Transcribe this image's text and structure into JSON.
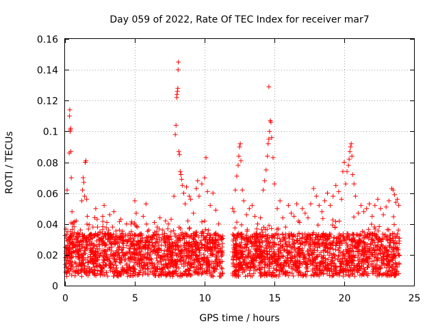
{
  "chart_data": {
    "type": "scatter",
    "title": "Day 059 of 2022, Rate Of TEC Index for receiver mar7",
    "xlabel": "GPS time / hours",
    "ylabel": "ROTI / TECUs",
    "xlim": [
      0,
      25
    ],
    "ylim": [
      0,
      0.16
    ],
    "xticks": [
      0,
      5,
      10,
      15,
      20,
      25
    ],
    "xtick_labels": [
      "0",
      "5",
      "10",
      "15",
      "20",
      "25"
    ],
    "yticks": [
      0,
      0.02,
      0.04,
      0.06,
      0.08,
      0.1,
      0.12,
      0.14,
      0.16
    ],
    "ytick_labels": [
      "0",
      "0.02",
      "0.04",
      "0.06",
      "0.08",
      "0.1",
      "0.12",
      "0.14",
      "0.16"
    ],
    "grid": true,
    "marker": "+",
    "color": "#ff0000",
    "series": [
      {
        "name": "ROTI",
        "points": [
          [
            0.05,
            0.018
          ],
          [
            0.1,
            0.025
          ],
          [
            0.15,
            0.062
          ],
          [
            0.2,
            0.035
          ],
          [
            0.25,
            0.03
          ],
          [
            0.3,
            0.086
          ],
          [
            0.32,
            0.11
          ],
          [
            0.34,
            0.114
          ],
          [
            0.36,
            0.1
          ],
          [
            0.38,
            0.101
          ],
          [
            0.4,
            0.102
          ],
          [
            0.42,
            0.087
          ],
          [
            0.45,
            0.07
          ],
          [
            0.5,
            0.048
          ],
          [
            0.55,
            0.04
          ],
          [
            0.6,
            0.022
          ],
          [
            0.7,
            0.03
          ],
          [
            0.8,
            0.042
          ],
          [
            0.9,
            0.034
          ],
          [
            1.0,
            0.028
          ],
          [
            1.1,
            0.036
          ],
          [
            1.2,
            0.055
          ],
          [
            1.25,
            0.062
          ],
          [
            1.3,
            0.07
          ],
          [
            1.35,
            0.067
          ],
          [
            1.4,
            0.058
          ],
          [
            1.45,
            0.08
          ],
          [
            1.5,
            0.081
          ],
          [
            1.55,
            0.056
          ],
          [
            1.6,
            0.045
          ],
          [
            1.7,
            0.03
          ],
          [
            1.8,
            0.024
          ],
          [
            1.9,
            0.033
          ],
          [
            2.0,
            0.038
          ],
          [
            2.1,
            0.026
          ],
          [
            2.2,
            0.05
          ],
          [
            2.3,
            0.043
          ],
          [
            2.5,
            0.035
          ],
          [
            2.7,
            0.045
          ],
          [
            2.8,
            0.052
          ],
          [
            3.0,
            0.041
          ],
          [
            3.2,
            0.046
          ],
          [
            3.4,
            0.038
          ],
          [
            3.5,
            0.048
          ],
          [
            3.7,
            0.031
          ],
          [
            3.9,
            0.036
          ],
          [
            4.0,
            0.043
          ],
          [
            4.2,
            0.029
          ],
          [
            4.4,
            0.04
          ],
          [
            4.6,
            0.034
          ],
          [
            4.8,
            0.027
          ],
          [
            5.0,
            0.055
          ],
          [
            5.1,
            0.047
          ],
          [
            5.2,
            0.038
          ],
          [
            5.4,
            0.032
          ],
          [
            5.6,
            0.045
          ],
          [
            5.8,
            0.053
          ],
          [
            6.0,
            0.036
          ],
          [
            6.2,
            0.03
          ],
          [
            6.4,
            0.041
          ],
          [
            6.6,
            0.038
          ],
          [
            6.8,
            0.044
          ],
          [
            7.0,
            0.036
          ],
          [
            7.2,
            0.042
          ],
          [
            7.4,
            0.04
          ],
          [
            7.6,
            0.043
          ],
          [
            7.8,
            0.058
          ],
          [
            7.9,
            0.098
          ],
          [
            7.95,
            0.104
          ],
          [
            8.0,
            0.122
          ],
          [
            8.02,
            0.124
          ],
          [
            8.05,
            0.126
          ],
          [
            8.08,
            0.128
          ],
          [
            8.1,
            0.14
          ],
          [
            8.12,
            0.145
          ],
          [
            8.15,
            0.087
          ],
          [
            8.2,
            0.085
          ],
          [
            8.25,
            0.074
          ],
          [
            8.3,
            0.072
          ],
          [
            8.35,
            0.069
          ],
          [
            8.4,
            0.065
          ],
          [
            8.5,
            0.06
          ],
          [
            8.6,
            0.053
          ],
          [
            8.7,
            0.064
          ],
          [
            8.8,
            0.042
          ],
          [
            8.9,
            0.058
          ],
          [
            9.0,
            0.056
          ],
          [
            9.2,
            0.047
          ],
          [
            9.4,
            0.063
          ],
          [
            9.5,
            0.068
          ],
          [
            9.6,
            0.058
          ],
          [
            9.8,
            0.066
          ],
          [
            10.0,
            0.07
          ],
          [
            10.1,
            0.083
          ],
          [
            10.2,
            0.061
          ],
          [
            10.4,
            0.052
          ],
          [
            10.6,
            0.06
          ],
          [
            10.8,
            0.049
          ],
          [
            11.0,
            0.04
          ],
          [
            11.2,
            0.03
          ],
          [
            12.0,
            0.05
          ],
          [
            12.1,
            0.048
          ],
          [
            12.2,
            0.062
          ],
          [
            12.3,
            0.071
          ],
          [
            12.4,
            0.078
          ],
          [
            12.45,
            0.084
          ],
          [
            12.5,
            0.09
          ],
          [
            12.55,
            0.092
          ],
          [
            12.6,
            0.081
          ],
          [
            12.7,
            0.062
          ],
          [
            12.8,
            0.055
          ],
          [
            13.0,
            0.046
          ],
          [
            13.2,
            0.05
          ],
          [
            13.4,
            0.052
          ],
          [
            13.6,
            0.045
          ],
          [
            13.8,
            0.04
          ],
          [
            14.0,
            0.044
          ],
          [
            14.2,
            0.062
          ],
          [
            14.3,
            0.068
          ],
          [
            14.4,
            0.075
          ],
          [
            14.5,
            0.084
          ],
          [
            14.55,
            0.092
          ],
          [
            14.6,
            0.095
          ],
          [
            14.65,
            0.1
          ],
          [
            14.7,
            0.107
          ],
          [
            14.75,
            0.106
          ],
          [
            14.6,
            0.129
          ],
          [
            14.8,
            0.096
          ],
          [
            14.9,
            0.083
          ],
          [
            15.0,
            0.066
          ],
          [
            15.2,
            0.05
          ],
          [
            15.4,
            0.055
          ],
          [
            15.6,
            0.044
          ],
          [
            15.8,
            0.038
          ],
          [
            16.0,
            0.052
          ],
          [
            16.2,
            0.047
          ],
          [
            16.4,
            0.045
          ],
          [
            16.6,
            0.053
          ],
          [
            16.8,
            0.041
          ],
          [
            17.0,
            0.05
          ],
          [
            17.2,
            0.047
          ],
          [
            17.4,
            0.044
          ],
          [
            17.6,
            0.053
          ],
          [
            17.8,
            0.063
          ],
          [
            18.0,
            0.058
          ],
          [
            18.2,
            0.052
          ],
          [
            18.4,
            0.048
          ],
          [
            18.6,
            0.055
          ],
          [
            18.8,
            0.06
          ],
          [
            19.0,
            0.052
          ],
          [
            19.2,
            0.058
          ],
          [
            19.4,
            0.065
          ],
          [
            19.6,
            0.061
          ],
          [
            19.8,
            0.056
          ],
          [
            19.9,
            0.074
          ],
          [
            20.0,
            0.08
          ],
          [
            20.1,
            0.066
          ],
          [
            20.2,
            0.074
          ],
          [
            20.3,
            0.078
          ],
          [
            20.35,
            0.082
          ],
          [
            20.4,
            0.087
          ],
          [
            20.45,
            0.09
          ],
          [
            20.5,
            0.092
          ],
          [
            20.55,
            0.084
          ],
          [
            20.6,
            0.072
          ],
          [
            20.7,
            0.066
          ],
          [
            20.8,
            0.058
          ],
          [
            21.0,
            0.047
          ],
          [
            21.2,
            0.052
          ],
          [
            21.4,
            0.048
          ],
          [
            21.6,
            0.05
          ],
          [
            21.8,
            0.053
          ],
          [
            22.0,
            0.045
          ],
          [
            22.2,
            0.052
          ],
          [
            22.4,
            0.056
          ],
          [
            22.6,
            0.05
          ],
          [
            22.8,
            0.046
          ],
          [
            23.0,
            0.051
          ],
          [
            23.2,
            0.055
          ],
          [
            23.4,
            0.063
          ],
          [
            23.5,
            0.062
          ],
          [
            23.6,
            0.059
          ],
          [
            23.7,
            0.054
          ],
          [
            23.8,
            0.056
          ],
          [
            23.9,
            0.052
          ]
        ],
        "noise_band": {
          "segments": [
            [
              0.0,
              11.3
            ],
            [
              12.0,
              23.95
            ]
          ],
          "baseline_min": 0.006,
          "baseline_max": 0.034,
          "point_count": 3000
        }
      }
    ]
  }
}
